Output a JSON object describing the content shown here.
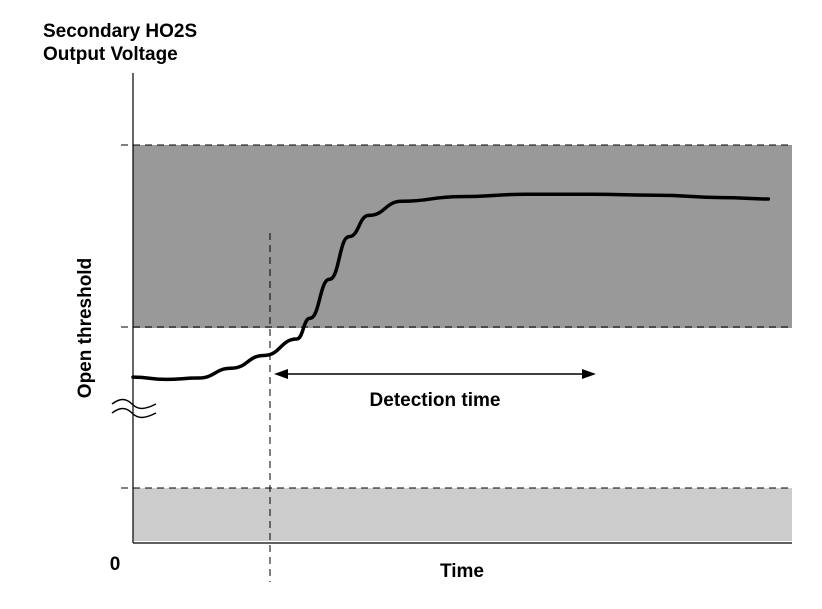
{
  "chart_data": {
    "type": "line",
    "title": [
      "Secondary HO2S",
      "Output Voltage"
    ],
    "xlabel": "Time",
    "ylabel": "Open threshold",
    "origin_label": "0",
    "annotations": {
      "detection_time": "Detection time"
    },
    "colors": {
      "upper_band": "#999999",
      "lower_band": "#cccccc",
      "curve": "#000000",
      "axis": "#000000"
    },
    "series": [
      {
        "values": [
          [
            0.0,
            0.353
          ],
          [
            0.05,
            0.348
          ],
          [
            0.1,
            0.351
          ],
          [
            0.15,
            0.372
          ],
          [
            0.2,
            0.399
          ],
          [
            0.25,
            0.434
          ],
          [
            0.27,
            0.478
          ],
          [
            0.3,
            0.561
          ],
          [
            0.33,
            0.652
          ],
          [
            0.36,
            0.697
          ],
          [
            0.41,
            0.727
          ],
          [
            0.5,
            0.737
          ],
          [
            0.6,
            0.742
          ],
          [
            0.7,
            0.742
          ],
          [
            0.8,
            0.74
          ],
          [
            0.9,
            0.735
          ],
          [
            0.97,
            0.732
          ]
        ]
      }
    ]
  }
}
